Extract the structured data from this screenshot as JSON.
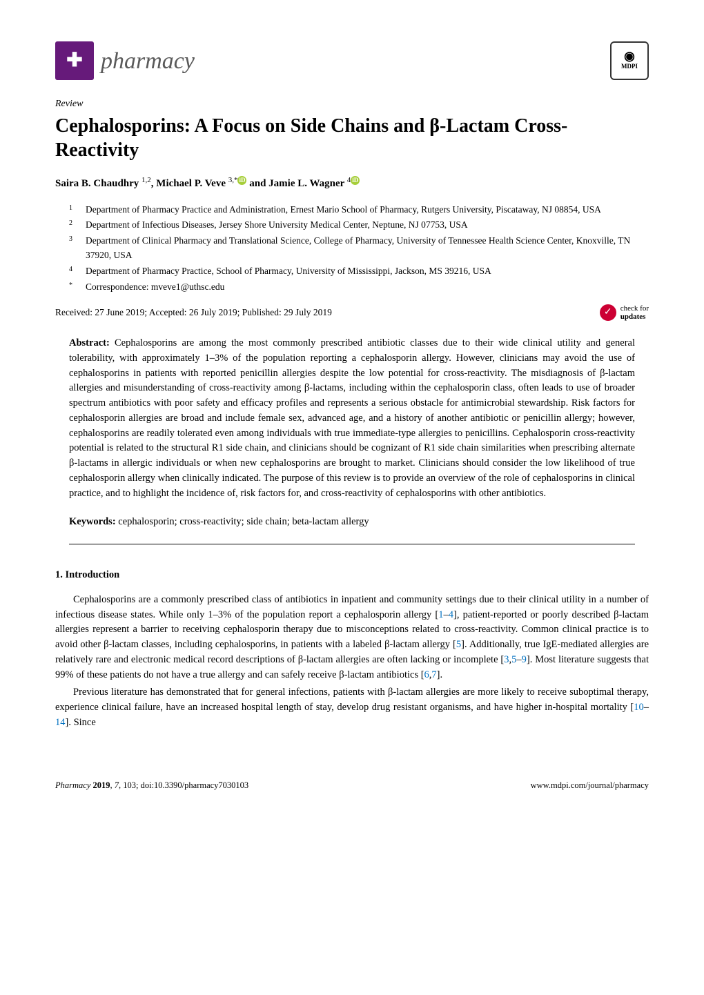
{
  "journal": {
    "name": "pharmacy",
    "brand_color": "#661a7a",
    "icon_glyph": "✚"
  },
  "publisher": {
    "name": "MDPI",
    "icon_glyph": "▲▼"
  },
  "article_type": "Review",
  "title": "Cephalosporins: A Focus on Side Chains and β-Lactam Cross-Reactivity",
  "authors_line": "Saira B. Chaudhry 1,2, Michael P. Veve 3,* and Jamie L. Wagner 4",
  "authors": [
    {
      "name": "Saira B. Chaudhry",
      "sup": "1,2",
      "orcid": false
    },
    {
      "name": "Michael P. Veve",
      "sup": "3,*",
      "orcid": true
    },
    {
      "name": "Jamie L. Wagner",
      "sup": "4",
      "orcid": true
    }
  ],
  "affiliations": [
    {
      "num": "1",
      "text": "Department of Pharmacy Practice and Administration, Ernest Mario School of Pharmacy, Rutgers University, Piscataway, NJ 08854, USA"
    },
    {
      "num": "2",
      "text": "Department of Infectious Diseases, Jersey Shore University Medical Center, Neptune, NJ 07753, USA"
    },
    {
      "num": "3",
      "text": "Department of Clinical Pharmacy and Translational Science, College of Pharmacy, University of Tennessee Health Science Center, Knoxville, TN 37920, USA"
    },
    {
      "num": "4",
      "text": "Department of Pharmacy Practice, School of Pharmacy, University of Mississippi, Jackson, MS 39216, USA"
    },
    {
      "num": "*",
      "text": "Correspondence: mveve1@uthsc.edu"
    }
  ],
  "dates": "Received: 27 June 2019; Accepted: 26 July 2019; Published: 29 July 2019",
  "updates_badge": {
    "line1": "check for",
    "line2": "updates"
  },
  "abstract": {
    "label": "Abstract:",
    "text": "Cephalosporins are among the most commonly prescribed antibiotic classes due to their wide clinical utility and general tolerability, with approximately 1–3% of the population reporting a cephalosporin allergy. However, clinicians may avoid the use of cephalosporins in patients with reported penicillin allergies despite the low potential for cross-reactivity. The misdiagnosis of β-lactam allergies and misunderstanding of cross-reactivity among β-lactams, including within the cephalosporin class, often leads to use of broader spectrum antibiotics with poor safety and efficacy profiles and represents a serious obstacle for antimicrobial stewardship. Risk factors for cephalosporin allergies are broad and include female sex, advanced age, and a history of another antibiotic or penicillin allergy; however, cephalosporins are readily tolerated even among individuals with true immediate-type allergies to penicillins. Cephalosporin cross-reactivity potential is related to the structural R1 side chain, and clinicians should be cognizant of R1 side chain similarities when prescribing alternate β-lactams in allergic individuals or when new cephalosporins are brought to market. Clinicians should consider the low likelihood of true cephalosporin allergy when clinically indicated. The purpose of this review is to provide an overview of the role of cephalosporins in clinical practice, and to highlight the incidence of, risk factors for, and cross-reactivity of cephalosporins with other antibiotics."
  },
  "keywords": {
    "label": "Keywords:",
    "text": "cephalosporin; cross-reactivity; side chain; beta-lactam allergy"
  },
  "section1": {
    "heading": "1. Introduction",
    "para1_pre": "Cephalosporins are a commonly prescribed class of antibiotics in inpatient and community settings due to their clinical utility in a number of infectious disease states. While only 1–3% of the population report a cephalosporin allergy [",
    "ref1": "1",
    "dash1": "–",
    "ref2": "4",
    "para1_mid1": "], patient-reported or poorly described β-lactam allergies represent a barrier to receiving cephalosporin therapy due to misconceptions related to cross-reactivity. Common clinical practice is to avoid other β-lactam classes, including cephalosporins, in patients with a labeled β-lactam allergy [",
    "ref3": "5",
    "para1_mid2": "]. Additionally, true IgE-mediated allergies are relatively rare and electronic medical record descriptions of β-lactam allergies are often lacking or incomplete [",
    "ref4": "3",
    "comma": ",",
    "ref5": "5",
    "dash2": "–",
    "ref6": "9",
    "para1_mid3": "]. Most literature suggests that 99% of these patients do not have a true allergy and can safely receive β-lactam antibiotics [",
    "ref7": "6",
    "comma2": ",",
    "ref8": "7",
    "para1_end": "].",
    "para2_pre": "Previous literature has demonstrated that for general infections, patients with β-lactam allergies are more likely to receive suboptimal therapy, experience clinical failure, have an increased hospital length of stay, develop drug resistant organisms, and have higher in-hospital mortality [",
    "ref9": "10",
    "dash3": "–",
    "ref10": "14",
    "para2_end": "]. Since"
  },
  "footer": {
    "left": "Pharmacy 2019, 7, 103; doi:10.3390/pharmacy7030103",
    "right": "www.mdpi.com/journal/pharmacy"
  },
  "colors": {
    "ref_link": "#0070c0",
    "orcid_green": "#a6ce39",
    "updates_red": "#cc0033"
  }
}
